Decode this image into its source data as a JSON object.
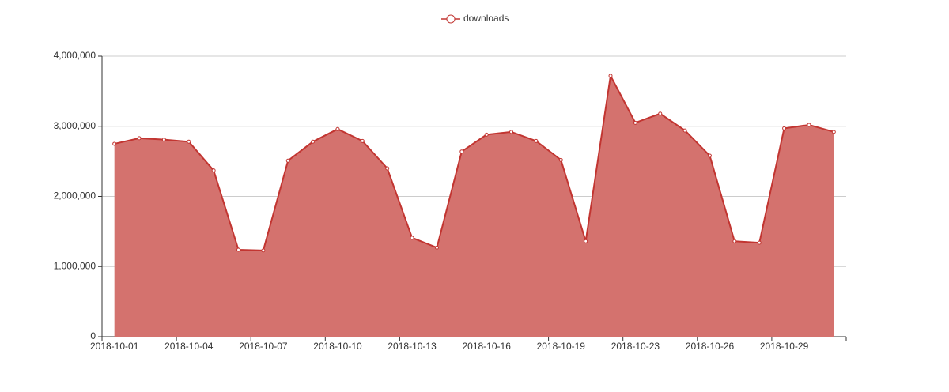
{
  "chart_data": {
    "type": "area",
    "legend": "top-center",
    "categories": [
      "2018-10-01",
      null,
      null,
      "2018-10-04",
      null,
      null,
      "2018-10-07",
      null,
      null,
      "2018-10-10",
      null,
      null,
      "2018-10-13",
      null,
      null,
      "2018-10-16",
      null,
      null,
      "2018-10-19",
      null,
      null,
      "2018-10-23",
      null,
      null,
      "2018-10-26",
      null,
      null,
      "2018-10-29",
      null,
      null
    ],
    "series": [
      {
        "name": "downloads",
        "color": "#c23531",
        "fill": "#d4726e",
        "values": [
          2750000,
          2830000,
          2810000,
          2780000,
          2370000,
          1240000,
          1230000,
          2510000,
          2780000,
          2960000,
          2790000,
          2400000,
          1410000,
          1270000,
          2640000,
          2880000,
          2920000,
          2790000,
          2520000,
          1360000,
          3720000,
          3050000,
          3180000,
          2940000,
          2580000,
          1360000,
          1340000,
          2970000,
          3020000,
          2920000
        ]
      }
    ],
    "ylim": [
      0,
      4000000
    ],
    "yticks": [
      0,
      {
        "value": 1000000,
        "label": "1,000,000"
      },
      {
        "value": 2000000,
        "label": "2,000,000"
      },
      {
        "value": 3000000,
        "label": "3,000,000"
      },
      {
        "value": 4000000,
        "label": "4,000,000"
      }
    ],
    "grid": true
  }
}
